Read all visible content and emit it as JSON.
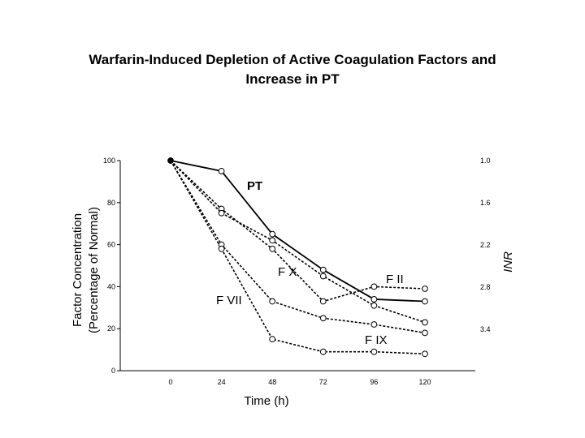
{
  "chart_data": {
    "type": "line",
    "title": "Warfarin-Induced Depletion of Active Coagulation Factors and Increase in PT",
    "title_lines": [
      "Warfarin-Induced Depletion of Active Coagulation Factors and",
      "Increase in PT"
    ],
    "xlabel": "Time (h)",
    "ylabel_lines": [
      "Factor Concentration",
      "(Percentage of Normal)"
    ],
    "ylabel2": "INR",
    "x_ticks": [
      "0",
      "24",
      "48",
      "72",
      "96",
      "120"
    ],
    "y_ticks": [
      "0",
      "20",
      "40",
      "60",
      "80",
      "100"
    ],
    "y2_ticks": [
      "1.0",
      "1.6",
      "2.2",
      "2.8",
      "3.4"
    ],
    "xlim": [
      0,
      120
    ],
    "ylim": [
      0,
      100
    ],
    "y2lim": [
      1.0,
      3.4
    ],
    "grid": false,
    "series": [
      {
        "name": "PT",
        "style": "solid",
        "x": [
          0,
          24,
          48,
          72,
          96,
          120
        ],
        "y": [
          100,
          95,
          65,
          48,
          34,
          33
        ]
      },
      {
        "name": "F VII",
        "style": "dashed",
        "x": [
          0,
          24,
          48,
          72,
          96,
          120
        ],
        "y": [
          100,
          58,
          15,
          9,
          9,
          8
        ]
      },
      {
        "name": "F IX",
        "style": "dashed",
        "x": [
          0,
          24,
          48,
          72,
          96,
          120
        ],
        "y": [
          100,
          60,
          33,
          25,
          22,
          18
        ]
      },
      {
        "name": "F X",
        "style": "dashed",
        "x": [
          0,
          24,
          48,
          72,
          96,
          120
        ],
        "y": [
          100,
          75,
          62,
          45,
          31,
          23
        ]
      },
      {
        "name": "F II",
        "style": "dashed",
        "x": [
          0,
          24,
          48,
          72,
          96,
          120
        ],
        "y": [
          100,
          77,
          58,
          33,
          40,
          39
        ]
      }
    ],
    "annotations": [
      "PT",
      "F X",
      "F II",
      "F VII",
      "F IX"
    ]
  }
}
